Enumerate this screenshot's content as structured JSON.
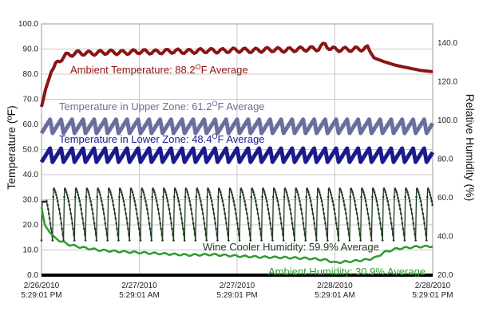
{
  "chart_data": {
    "type": "line",
    "xlabel": "",
    "ylabel_left": "Temperature (ºF)",
    "ylabel_right": "Relative Humidity (%)",
    "x_range": [
      "2/26/2010 5:29:01 PM",
      "2/28/2010 5:29:01 PM"
    ],
    "x_ticks": [
      {
        "date": "2/26/2010",
        "time": "5:29:01 PM"
      },
      {
        "date": "2/27/2010",
        "time": "5:29:01 AM"
      },
      {
        "date": "2/27/2010",
        "time": "5:29:01 PM"
      },
      {
        "date": "2/28/2010",
        "time": "5:29:01 AM"
      },
      {
        "date": "2/28/2010",
        "time": "5:29:01 PM"
      }
    ],
    "y_left": {
      "min": 0,
      "max": 100,
      "ticks": [
        "0.0",
        "10.0",
        "20.0",
        "30.0",
        "40.0",
        "50.0",
        "60.0",
        "70.0",
        "80.0",
        "90.0",
        "100.0"
      ]
    },
    "y_right": {
      "min": 20,
      "max": 150,
      "ticks": [
        "20.0",
        "40.0",
        "60.0",
        "80.0",
        "100.0",
        "120.0",
        "140.0"
      ]
    },
    "grid": true,
    "series": [
      {
        "name": "Ambient Temperature",
        "label_prefix": "Ambient Temperature: 88.2",
        "label_suffix": "F Average",
        "axis": "left",
        "color": "#8b1414",
        "points": [
          [
            0,
            67
          ],
          [
            0.5,
            74
          ],
          [
            1.2,
            81
          ],
          [
            2,
            85
          ],
          [
            3,
            87.5
          ],
          [
            4.5,
            88.5
          ],
          [
            6,
            88.3
          ],
          [
            8,
            88.8
          ],
          [
            10,
            88.6
          ],
          [
            12,
            89
          ],
          [
            14,
            88.8
          ],
          [
            16,
            89.2
          ],
          [
            18,
            89
          ],
          [
            20,
            89.4
          ],
          [
            22,
            89.3
          ],
          [
            24,
            89.6
          ],
          [
            26,
            89.4
          ],
          [
            28,
            89.8
          ],
          [
            30,
            89.6
          ],
          [
            32,
            90
          ],
          [
            34,
            90.2
          ],
          [
            34.8,
            92
          ],
          [
            35.5,
            90
          ],
          [
            37,
            89.8
          ],
          [
            39,
            90
          ],
          [
            40,
            90.4
          ],
          [
            40.8,
            86.5
          ],
          [
            42,
            85
          ],
          [
            43.5,
            83.5
          ],
          [
            45,
            82.5
          ],
          [
            46.5,
            81.5
          ],
          [
            48,
            81
          ]
        ]
      },
      {
        "name": "Temperature in Upper Zone",
        "label_prefix": "Temperature in Upper Zone: 61.2",
        "label_suffix": "F Average",
        "axis": "left",
        "color": "#6a6e9e",
        "base": 56.5,
        "amp": 5.5,
        "period": 1.35
      },
      {
        "name": "Temperature in Lower Zone",
        "label_prefix": "Temperature in Lower Zone: 48.4",
        "label_suffix": "F Average",
        "axis": "left",
        "color": "#1a1a8c",
        "base": 45,
        "amp": 5.5,
        "period": 1.35
      },
      {
        "name": "Wine Cooler Humidity",
        "label_prefix": "Wine Cooler Humidity: 59.9% Average",
        "label_suffix": "",
        "axis": "right",
        "color": "#1e3a1e",
        "top": 65,
        "bottom": 38,
        "period": 1.35
      },
      {
        "name": "Ambient Humidity",
        "label_prefix": "Ambient Humidity: 30.9% Average",
        "label_suffix": "",
        "axis": "left",
        "color": "#2f9a2f",
        "points": [
          [
            0,
            27
          ],
          [
            0.4,
            20
          ],
          [
            1,
            17
          ],
          [
            2,
            14
          ],
          [
            3.5,
            12
          ],
          [
            5,
            11
          ],
          [
            7,
            10
          ],
          [
            9,
            9.5
          ],
          [
            12,
            9
          ],
          [
            15,
            8.5
          ],
          [
            18,
            8
          ],
          [
            21,
            8.2
          ],
          [
            24,
            7.6
          ],
          [
            27,
            7.2
          ],
          [
            30,
            7
          ],
          [
            33,
            6.6
          ],
          [
            35,
            6
          ],
          [
            36,
            5
          ],
          [
            38,
            5.5
          ],
          [
            40,
            6.2
          ],
          [
            41,
            7
          ],
          [
            42,
            9
          ],
          [
            43.5,
            10.5
          ],
          [
            46,
            11.3
          ],
          [
            48,
            11.5
          ]
        ]
      }
    ]
  }
}
